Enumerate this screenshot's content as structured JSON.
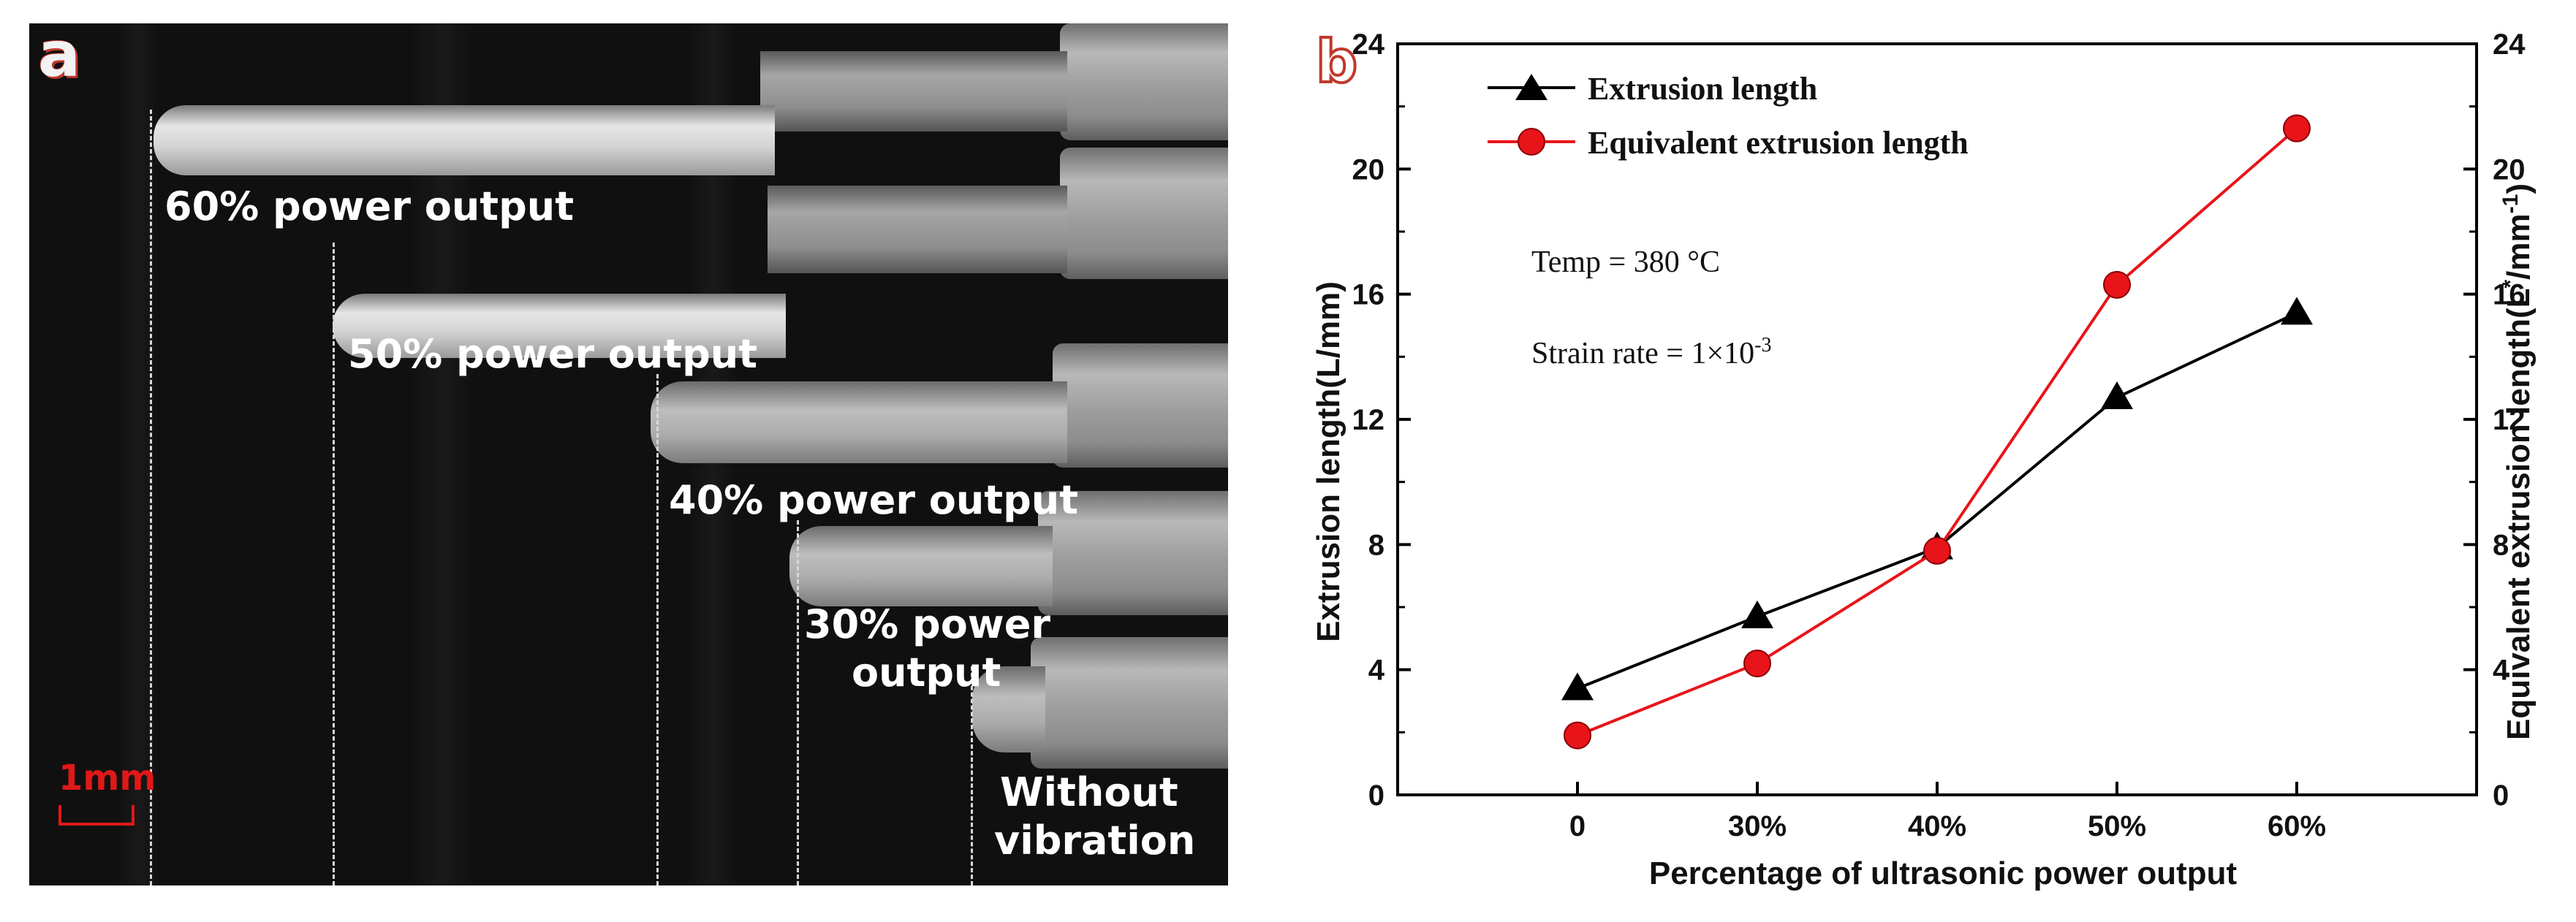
{
  "panel_a": {
    "letter": "a",
    "labels": [
      {
        "id": "p60",
        "text": "60% power output"
      },
      {
        "id": "p50",
        "text": "50% power output"
      },
      {
        "id": "p40",
        "text": "40% power output"
      },
      {
        "id": "p30",
        "line1": "30% power",
        "line2": "output"
      },
      {
        "id": "p0",
        "line1": "Without",
        "line2": "vibration"
      }
    ],
    "scale_bar": "1mm",
    "colors": {
      "background": "#101010",
      "label": "#ffffff",
      "scale": "#e01818"
    }
  },
  "panel_b": {
    "letter": "b",
    "annotation_temp": "Temp = 380 °C",
    "annotation_strain_prefix": "Strain rate = 1×10",
    "annotation_strain_exp": "-3"
  },
  "chart_data": {
    "type": "line",
    "categories": [
      "0",
      "30%",
      "40%",
      "50%",
      "60%"
    ],
    "xlabel": "Percentage of ultrasonic power output",
    "ylabel": "Extrusion length(L/mm)",
    "ylabel_right_main": "Equivalent extrusion length(L",
    "ylabel_right_sup1": "*",
    "ylabel_right_mid": "/mm",
    "ylabel_right_sup2": "-1",
    "ylabel_right_end": ")",
    "ylim": [
      0,
      24
    ],
    "yticks": [
      "0",
      "4",
      "8",
      "12",
      "16",
      "20",
      "24"
    ],
    "ylim_right": [
      0,
      24
    ],
    "yticks_right": [
      "0",
      "4",
      "8",
      "12",
      "16",
      "20",
      "24"
    ],
    "grid": false,
    "legend_position": "top-left",
    "series": [
      {
        "name": "Extrusion length",
        "marker": "triangle",
        "color": "#000000",
        "values": [
          3.4,
          5.7,
          7.9,
          12.7,
          15.4
        ]
      },
      {
        "name": "Equivalent extrusion length",
        "marker": "circle",
        "color": "#e8141a",
        "values": [
          1.9,
          4.2,
          7.8,
          16.3,
          21.3
        ]
      }
    ]
  }
}
